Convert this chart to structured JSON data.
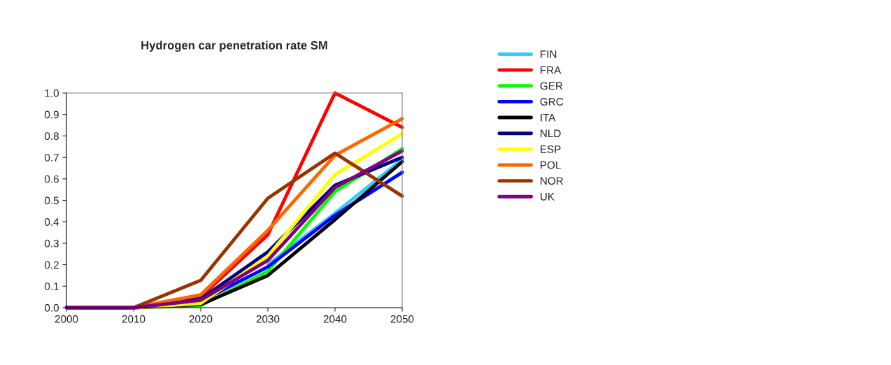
{
  "chart_data": {
    "type": "line",
    "title": "Hydrogen car penetration rate SM",
    "x": [
      2000,
      2010,
      2020,
      2030,
      2040,
      2050
    ],
    "xlim": [
      2000,
      2050
    ],
    "xticks": [
      2000,
      2010,
      2020,
      2030,
      2040,
      2050
    ],
    "ylim": [
      0,
      1.0
    ],
    "yticks": [
      {
        "value": 0,
        "label": "0.0"
      },
      {
        "value": 0.1,
        "label": "0.1"
      },
      {
        "value": 0.2,
        "label": "0.2"
      },
      {
        "value": 0.3,
        "label": "0.3"
      },
      {
        "value": 0.4,
        "label": "0.4"
      },
      {
        "value": 0.5,
        "label": "0.5"
      },
      {
        "value": 0.6,
        "label": "0.6"
      },
      {
        "value": 0.7,
        "label": "0.7"
      },
      {
        "value": 0.8,
        "label": "0.8"
      },
      {
        "value": 0.9,
        "label": "0.9"
      },
      {
        "value": 1.0,
        "label": "1.0"
      }
    ],
    "grid": false,
    "legend": "right",
    "marker": "none",
    "line_style": "solid",
    "series": [
      {
        "name": "FIN",
        "color": "#33ccff",
        "values": [
          null,
          null,
          null,
          0.2,
          0.44,
          0.69
        ]
      },
      {
        "name": "FRA",
        "color": "#ff0000",
        "values": [
          0,
          0,
          0.05,
          0.34,
          1.0,
          0.84
        ]
      },
      {
        "name": "GER",
        "color": "#00ff00",
        "values": [
          0,
          0,
          0.01,
          0.17,
          0.54,
          0.74
        ]
      },
      {
        "name": "GRC",
        "color": "#0000ff",
        "values": [
          0,
          0,
          0.03,
          0.19,
          0.43,
          0.63
        ]
      },
      {
        "name": "ITA",
        "color": "#000000",
        "values": [
          0,
          0,
          0.015,
          0.15,
          0.41,
          0.68
        ]
      },
      {
        "name": "NLD",
        "color": "#000080",
        "values": [
          0,
          0,
          0.04,
          0.26,
          0.57,
          0.7
        ]
      },
      {
        "name": "ESP",
        "color": "#ffff00",
        "values": [
          0,
          0,
          0.02,
          0.24,
          0.62,
          0.81
        ]
      },
      {
        "name": "POL",
        "color": "#ff6600",
        "values": [
          0,
          0,
          0.06,
          0.36,
          0.71,
          0.88
        ]
      },
      {
        "name": "NOR",
        "color": "#993300",
        "values": [
          0,
          0,
          0.127,
          0.51,
          0.72,
          0.52
        ]
      },
      {
        "name": "UK",
        "color": "#800080",
        "values": [
          0,
          0,
          0.035,
          0.22,
          0.56,
          0.73
        ]
      }
    ]
  }
}
